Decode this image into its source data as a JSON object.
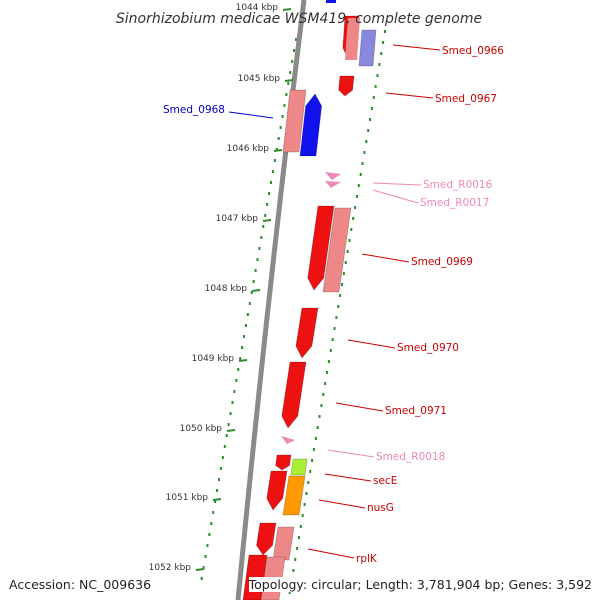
{
  "title": "Sinorhizobium medicae WSM419, complete genome",
  "footer": {
    "accession": "Accession: NC_009636",
    "summary": "Topology: circular; Length: 3,781,904 bp; Genes: 3,592"
  },
  "colors": {
    "backbone": "#8a8a8a",
    "tick": "#2e8b2e",
    "dot": "#2e8b2e",
    "gene": "#ee1111",
    "gene_light": "#ee8888",
    "gene_other_strand": "#1111ee",
    "gene_other_strand_light": "#8888dd",
    "rna": "#ee88bb",
    "secE": "#aaee33",
    "nusG": "#ff9900",
    "label_red": "#cc0000",
    "label_blue": "#0000cc",
    "label_pink": "#ee88bb"
  },
  "ticks": [
    "1044 kbp",
    "1045 kbp",
    "1046 kbp",
    "1047 kbp",
    "1048 kbp",
    "1049 kbp",
    "1050 kbp",
    "1051 kbp",
    "1052 kbp"
  ],
  "genes": [
    {
      "name": "Smed_0966",
      "kind": "gene"
    },
    {
      "name": "Smed_0967",
      "kind": "gene"
    },
    {
      "name": "Smed_0968",
      "kind": "gene_other_strand"
    },
    {
      "name": "Smed_R0016",
      "kind": "rna"
    },
    {
      "name": "Smed_R0017",
      "kind": "rna"
    },
    {
      "name": "Smed_0969",
      "kind": "gene"
    },
    {
      "name": "Smed_0970",
      "kind": "gene"
    },
    {
      "name": "Smed_0971",
      "kind": "gene"
    },
    {
      "name": "Smed_R0018",
      "kind": "rna"
    },
    {
      "name": "secE",
      "kind": "gene"
    },
    {
      "name": "nusG",
      "kind": "gene"
    },
    {
      "name": "rplK",
      "kind": "gene"
    }
  ]
}
